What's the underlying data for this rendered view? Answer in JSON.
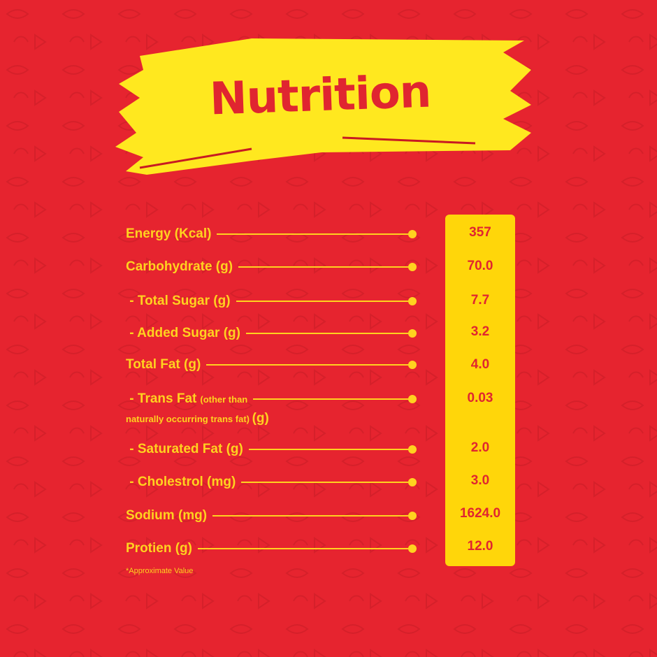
{
  "title": "Nutrition",
  "colors": {
    "background": "#e6242f",
    "accent_yellow": "#ffd21f",
    "value_text": "#e02530"
  },
  "rows": [
    {
      "label": "Energy (Kcal)",
      "value": "357"
    },
    {
      "label": "Carbohydrate (g)",
      "value": "70.0"
    },
    {
      "label": " - Total Sugar (g)",
      "value": "7.7"
    },
    {
      "label": " - Added Sugar (g)",
      "value": "3.2"
    },
    {
      "label": "Total Fat (g)",
      "value": "4.0"
    },
    {
      "label": " - Trans Fat",
      "label_small": "(other than",
      "label_line2": "naturally occurring trans fat)",
      "label_line2_unit": "(g)",
      "value": "0.03"
    },
    {
      "label": " - Saturated Fat (g)",
      "value": "2.0"
    },
    {
      "label": " - Cholestrol (mg)",
      "value": "3.0"
    },
    {
      "label": "Sodium (mg)",
      "value": "1624.0"
    },
    {
      "label": "Protien (g)",
      "value": "12.0"
    }
  ],
  "footnote": "*Approximate Value"
}
